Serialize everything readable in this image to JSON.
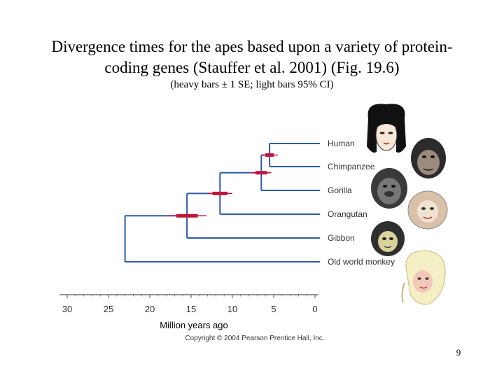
{
  "slide": {
    "title_line1": "Divergence times for the apes based upon a variety of protein-",
    "title_line2": "coding genes (Stauffer et al. 2001) (Fig. 19.6)",
    "subtitle": "(heavy bars ± 1 SE; light bars 95% CI)",
    "page_number": "9"
  },
  "colors": {
    "branch": "#2e5aa8",
    "bar": "#c0143c",
    "axis": "#555555"
  },
  "tree": {
    "leaves": [
      "Human",
      "Chimpanzee",
      "Gorilla",
      "Orangutan",
      "Gibbon",
      "Old world monkey"
    ],
    "axis_label": "Million years ago",
    "ticks": [
      "30",
      "25",
      "20",
      "15",
      "10",
      "5",
      "0"
    ],
    "copyright": "Copyright © 2004 Pearson Prentice Hall, Inc."
  },
  "chart_data": {
    "type": "tree",
    "x_unit": "Million years ago",
    "x_range": [
      30,
      0
    ],
    "leaves": [
      "Human",
      "Chimpanzee",
      "Gorilla",
      "Orangutan",
      "Gibbon",
      "Old world monkey"
    ],
    "nodes": [
      {
        "clade": [
          "Human",
          "Chimpanzee"
        ],
        "time": 5.5,
        "se": [
          5.0,
          6.0
        ],
        "ci95": [
          4.5,
          6.5
        ]
      },
      {
        "clade": [
          "Human",
          "Chimpanzee",
          "Gorilla"
        ],
        "time": 6.5,
        "se": [
          5.8,
          7.2
        ],
        "ci95": [
          5.3,
          7.8
        ]
      },
      {
        "clade": [
          "Human",
          "Chimpanzee",
          "Gorilla",
          "Orangutan"
        ],
        "time": 11.5,
        "se": [
          10.6,
          12.4
        ],
        "ci95": [
          10.0,
          13.0
        ]
      },
      {
        "clade": [
          "Human",
          "Chimpanzee",
          "Gorilla",
          "Orangutan",
          "Gibbon"
        ],
        "time": 15.5,
        "se": [
          14.2,
          16.8
        ],
        "ci95": [
          13.2,
          17.8
        ]
      },
      {
        "clade": [
          "Human",
          "Chimpanzee",
          "Gorilla",
          "Orangutan",
          "Gibbon",
          "Old world monkey"
        ],
        "time": 23.0
      }
    ]
  }
}
